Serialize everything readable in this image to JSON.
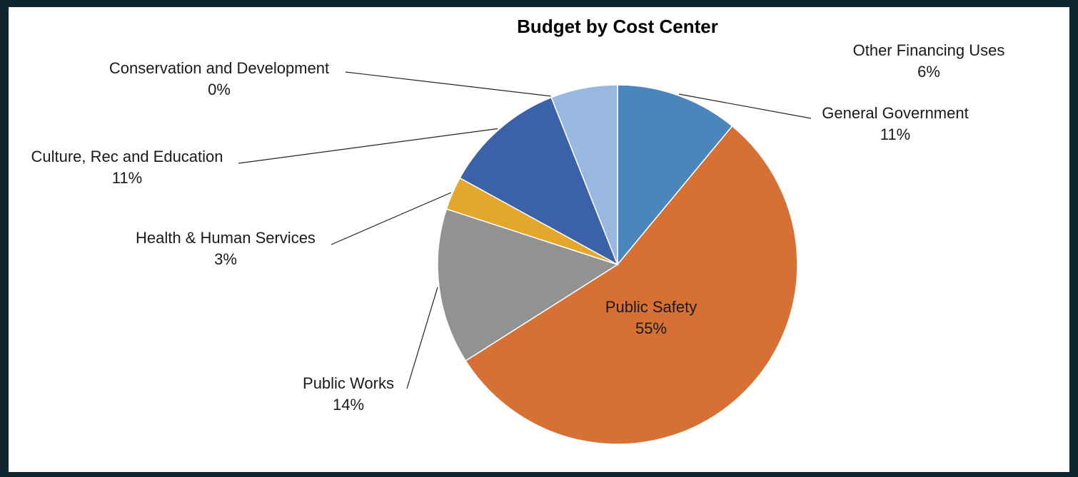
{
  "chart_data": {
    "type": "pie",
    "title": "Budget by Cost Center",
    "slices": [
      {
        "label": "General Government",
        "value": 11,
        "display": "11%",
        "color": "#4a86bb"
      },
      {
        "label": "Public Safety",
        "value": 55,
        "display": "55%",
        "color": "#d67034"
      },
      {
        "label": "Public Works",
        "value": 14,
        "display": "14%",
        "color": "#929292"
      },
      {
        "label": "Health & Human Services",
        "value": 3,
        "display": "3%",
        "color": "#e3a82b"
      },
      {
        "label": "Culture, Rec and Education",
        "value": 11,
        "display": "11%",
        "color": "#3b62a8"
      },
      {
        "label": "Conservation and Development",
        "value": 0,
        "display": "0%",
        "color": "#6f9bd0"
      },
      {
        "label": "Other Financing Uses",
        "value": 6,
        "display": "6%",
        "color": "#98b8df"
      }
    ],
    "start": "top",
    "direction": "clockwise",
    "legend": "none",
    "data_labels": "outside-with-leader-lines"
  }
}
